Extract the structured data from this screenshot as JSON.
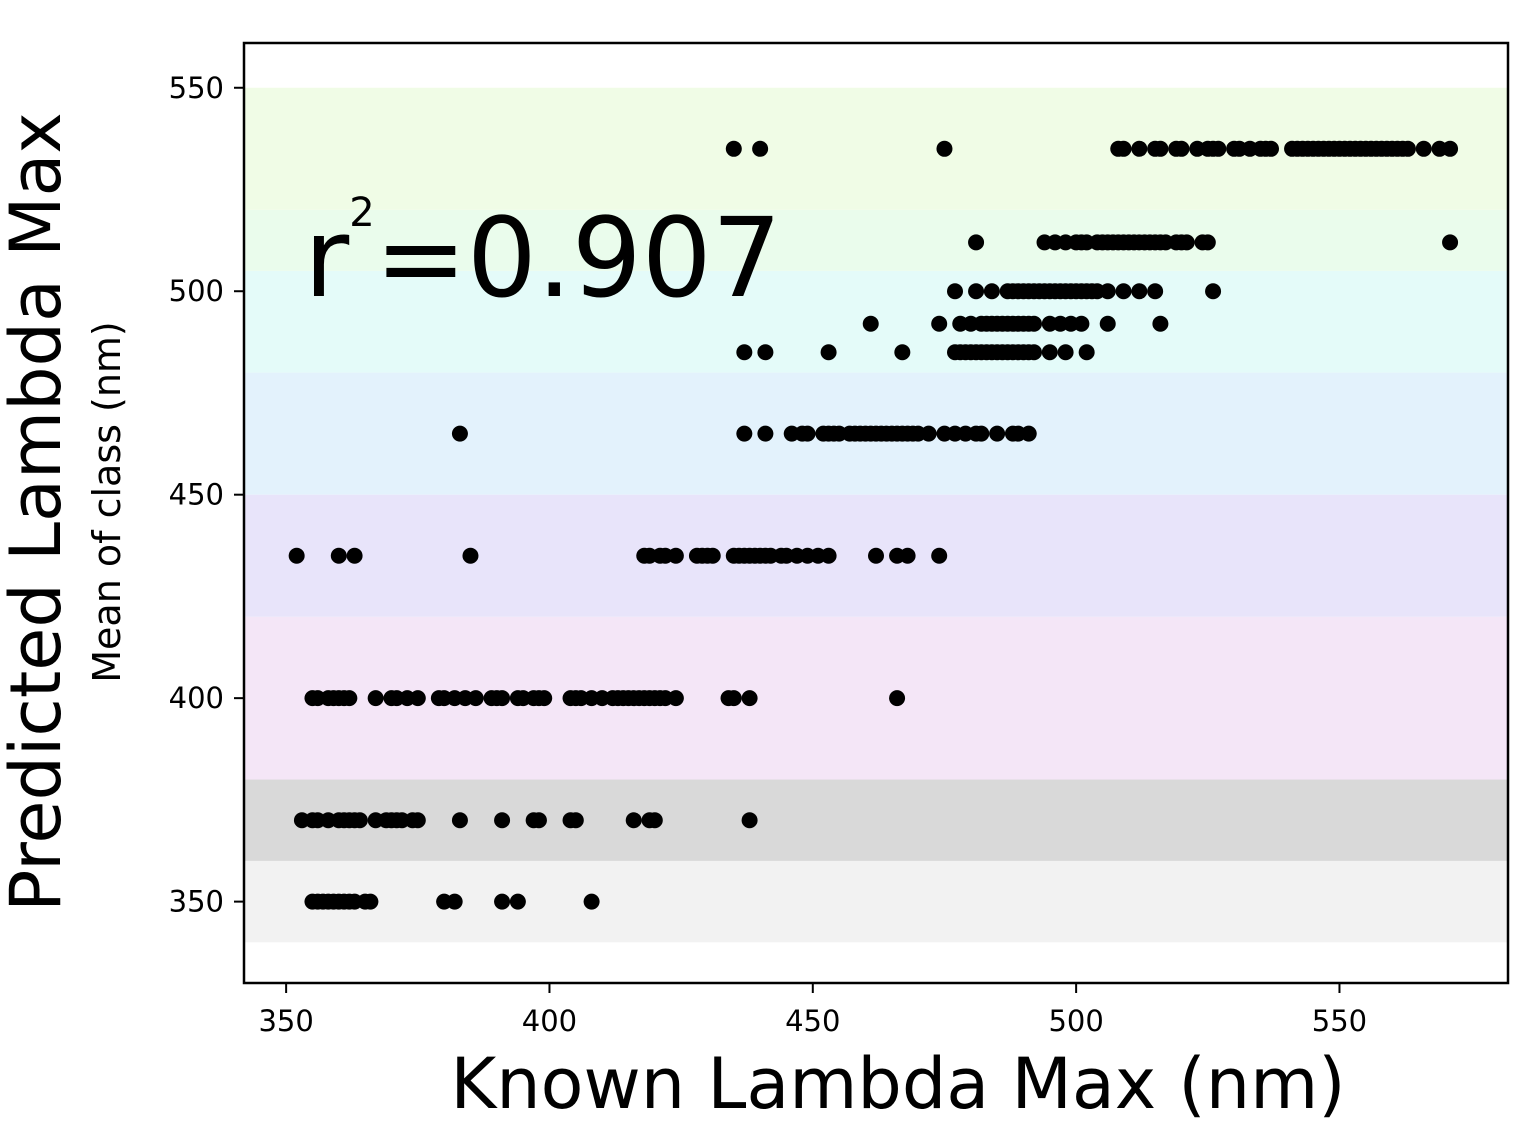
{
  "chart_data": {
    "type": "scatter",
    "title": "",
    "xlabel": "Known Lambda Max (nm)",
    "ylabel": "Predicted Lambda Max",
    "ylabel_sub": "Mean of class (nm)",
    "annotation": {
      "base": "r",
      "sup": "2",
      "value": "=0.907"
    },
    "xlim": [
      342,
      582
    ],
    "ylim": [
      330,
      561
    ],
    "xticks": [
      350,
      400,
      450,
      500,
      550
    ],
    "yticks": [
      350,
      400,
      450,
      500,
      550
    ],
    "grid": false,
    "marker_color": "#000000",
    "bands": [
      {
        "y0": 340,
        "y1": 360,
        "color": "#f2f2f2"
      },
      {
        "y0": 360,
        "y1": 380,
        "color": "#d9d9d9"
      },
      {
        "y0": 380,
        "y1": 420,
        "color": "#f4e6f7"
      },
      {
        "y0": 420,
        "y1": 450,
        "color": "#e8e4fa"
      },
      {
        "y0": 450,
        "y1": 480,
        "color": "#e3f2fc"
      },
      {
        "y0": 480,
        "y1": 505,
        "color": "#e4fbf9"
      },
      {
        "y0": 505,
        "y1": 520,
        "color": "#eafcec"
      },
      {
        "y0": 520,
        "y1": 550,
        "color": "#f0fce6"
      }
    ],
    "series": [
      {
        "y": 350,
        "x": [
          355,
          356,
          357,
          358,
          359,
          360,
          361,
          362,
          363,
          365,
          366,
          380,
          382,
          391,
          394,
          408
        ]
      },
      {
        "y": 370,
        "x": [
          353,
          355,
          356,
          358,
          360,
          361,
          362,
          363,
          364,
          367,
          369,
          370,
          371,
          372,
          374,
          375,
          383,
          391,
          397,
          398,
          404,
          405,
          416,
          419,
          420,
          438
        ]
      },
      {
        "y": 400,
        "x": [
          355,
          356,
          358,
          359,
          360,
          361,
          362,
          367,
          370,
          371,
          373,
          375,
          379,
          380,
          382,
          384,
          386,
          389,
          390,
          391,
          394,
          395,
          397,
          398,
          399,
          404,
          405,
          406,
          408,
          410,
          412,
          413,
          414,
          415,
          416,
          417,
          418,
          419,
          420,
          421,
          422,
          424,
          434,
          435,
          438,
          466
        ]
      },
      {
        "y": 435,
        "x": [
          352,
          360,
          363,
          385,
          418,
          419,
          421,
          422,
          424,
          428,
          429,
          430,
          431,
          435,
          436,
          437,
          438,
          439,
          440,
          441,
          442,
          444,
          445,
          447,
          449,
          451,
          453,
          462,
          466,
          468,
          474
        ]
      },
      {
        "y": 465,
        "x": [
          383,
          437,
          441,
          446,
          448,
          449,
          452,
          453,
          454,
          455,
          457,
          458,
          459,
          460,
          461,
          462,
          463,
          464,
          465,
          466,
          467,
          468,
          469,
          470,
          472,
          475,
          477,
          479,
          481,
          482,
          485,
          488,
          489,
          491
        ]
      },
      {
        "y": 485,
        "x": [
          437,
          441,
          453,
          467,
          477,
          478,
          479,
          480,
          481,
          482,
          483,
          484,
          485,
          486,
          487,
          488,
          489,
          490,
          491,
          492,
          495,
          498,
          502
        ]
      },
      {
        "y": 492,
        "x": [
          461,
          474,
          478,
          480,
          482,
          483,
          484,
          485,
          486,
          487,
          488,
          489,
          490,
          491,
          492,
          495,
          497,
          499,
          501,
          506,
          516
        ]
      },
      {
        "y": 500,
        "x": [
          477,
          481,
          484,
          487,
          488,
          489,
          490,
          491,
          492,
          493,
          494,
          495,
          496,
          497,
          498,
          499,
          500,
          501,
          502,
          503,
          504,
          506,
          509,
          512,
          515,
          526
        ]
      },
      {
        "y": 512,
        "x": [
          481,
          494,
          496,
          498,
          500,
          501,
          502,
          504,
          505,
          506,
          507,
          508,
          509,
          510,
          511,
          512,
          513,
          514,
          515,
          516,
          517,
          519,
          520,
          521,
          524,
          525,
          571
        ]
      },
      {
        "y": 535,
        "x": [
          435,
          440,
          475,
          508,
          509,
          512,
          515,
          516,
          519,
          520,
          523,
          525,
          526,
          527,
          530,
          531,
          533,
          535,
          536,
          537,
          541,
          542,
          543,
          544,
          545,
          546,
          547,
          548,
          549,
          550,
          551,
          552,
          553,
          554,
          555,
          556,
          557,
          558,
          559,
          560,
          561,
          562,
          563,
          566,
          569,
          571
        ]
      }
    ]
  }
}
